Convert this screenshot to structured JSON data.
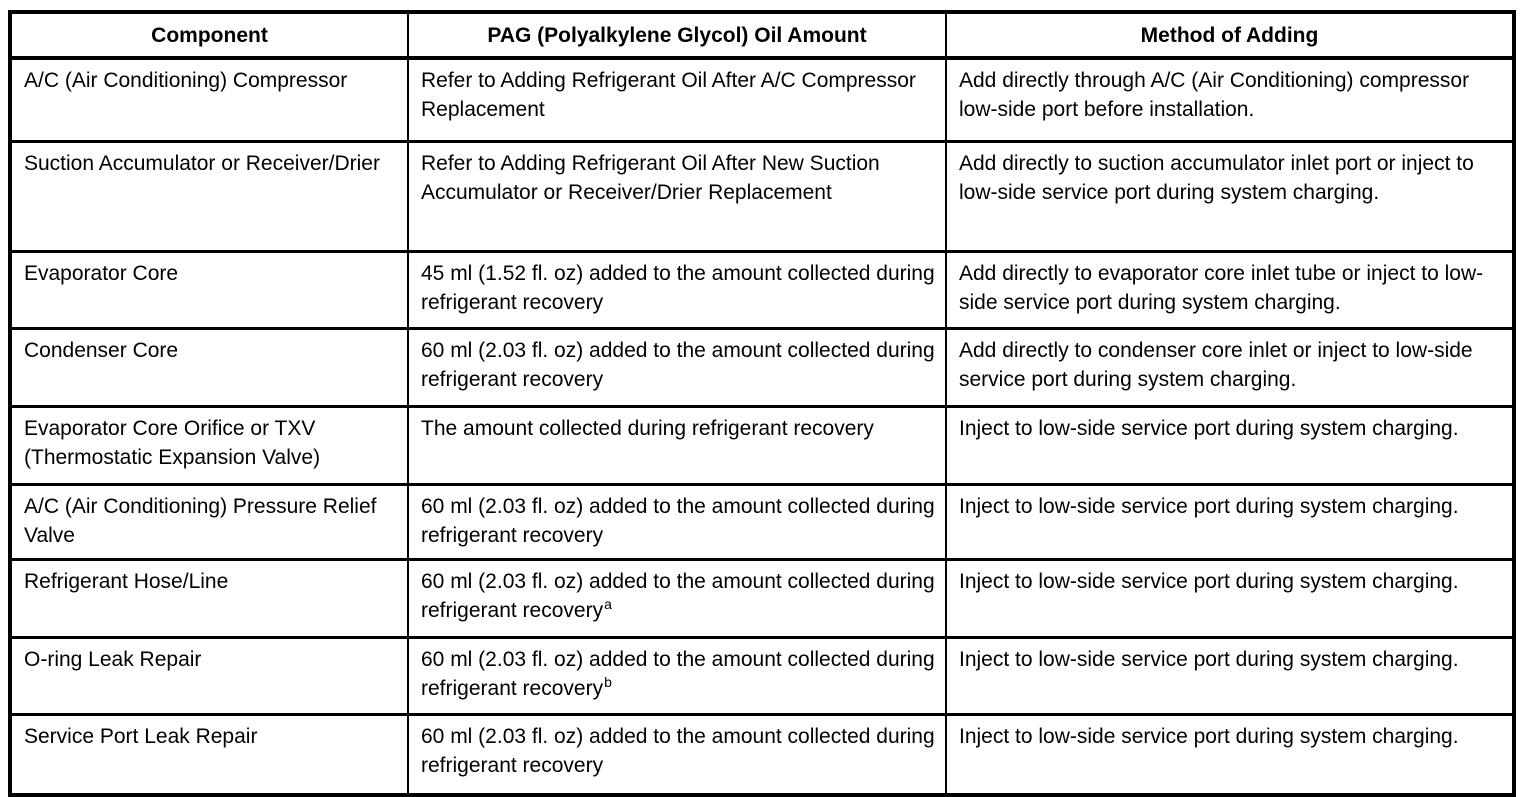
{
  "table": {
    "columns": [
      "Component",
      "PAG (Polyalkylene Glycol) Oil Amount",
      "Method of Adding"
    ],
    "rows": [
      {
        "component": "A/C (Air Conditioning) Compressor",
        "oil_amount": "Refer to Adding Refrigerant Oil After A/C Compressor Replacement",
        "footnote": "",
        "method": "Add directly through A/C (Air Conditioning) compressor low-side port before installation."
      },
      {
        "component": "Suction Accumulator or Receiver/Drier",
        "oil_amount": "Refer to Adding Refrigerant Oil After New Suction Accumulator or Receiver/Drier Replacement",
        "footnote": "",
        "method": "Add directly to suction accumulator inlet port or inject to low-side service port during system charging."
      },
      {
        "component": "Evaporator Core",
        "oil_amount": "45 ml (1.52 fl. oz) added to the amount collected during refrigerant recovery",
        "footnote": "",
        "method": "Add directly to evaporator core inlet tube or inject to low-side service port during system charging."
      },
      {
        "component": "Condenser Core",
        "oil_amount": "60 ml (2.03 fl. oz) added to the amount collected during refrigerant recovery",
        "footnote": "",
        "method": "Add directly to condenser core inlet or inject to low-side service port during system charging."
      },
      {
        "component": "Evaporator Core Orifice or TXV (Thermostatic Expansion Valve)",
        "oil_amount": "The amount collected during refrigerant recovery",
        "footnote": "",
        "method": "Inject to low-side service port during system charging."
      },
      {
        "component": "A/C (Air Conditioning) Pressure Relief Valve",
        "oil_amount": "60 ml (2.03 fl. oz) added to the amount collected during refrigerant recovery",
        "footnote": "",
        "method": "Inject to low-side service port during system charging."
      },
      {
        "component": "Refrigerant Hose/Line",
        "oil_amount": "60 ml (2.03 fl. oz) added to the amount collected during refrigerant recovery",
        "footnote": "a",
        "method": "Inject to low-side service port during system charging."
      },
      {
        "component": "O-ring Leak Repair",
        "oil_amount": "60 ml (2.03 fl. oz) added to the amount collected during refrigerant recovery",
        "footnote": "b",
        "method": "Inject to low-side service port during system charging."
      },
      {
        "component": "Service Port Leak Repair",
        "oil_amount": "60 ml (2.03 fl. oz) added to the amount collected during refrigerant recovery",
        "footnote": "",
        "method": "Inject to low-side service port during system charging."
      }
    ]
  },
  "colors": {
    "border": "#000000",
    "text": "#000000",
    "background": "#ffffff"
  }
}
